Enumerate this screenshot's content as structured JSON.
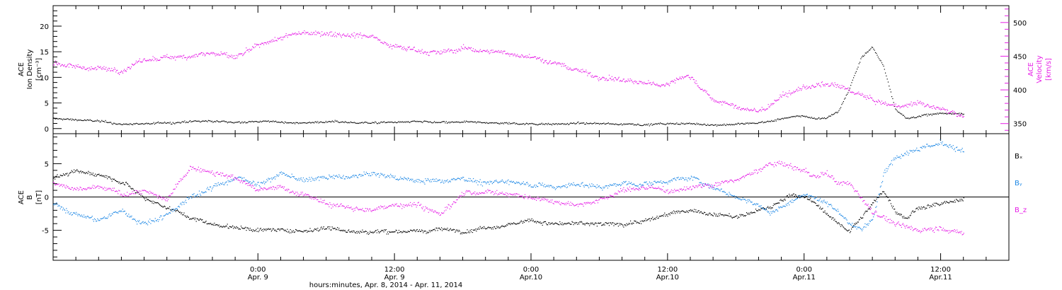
{
  "chart_data": [
    {
      "type": "scatter",
      "panel": "top",
      "x_range_hours": [
        -18,
        66
      ],
      "data_end_hour": 62,
      "left_axis": {
        "label_lines": [
          "ACE",
          "Ion Density",
          "[cm⁻³]"
        ],
        "ylim": [
          -1,
          24
        ],
        "ticks": [
          0,
          5,
          10,
          15,
          20
        ]
      },
      "right_axis": {
        "label_lines": [
          "ACE",
          "Velocity",
          "[km/s]"
        ],
        "ylim": [
          335,
          525
        ],
        "ticks": [
          350,
          400,
          450,
          500
        ]
      },
      "colors": {
        "density": "#000000",
        "velocity": "#e61ee6"
      },
      "series": [
        {
          "name": "density",
          "axis": "left",
          "color": "#000000",
          "x": [
            -18,
            -16,
            -14,
            -12,
            -10,
            -8,
            -6,
            -4,
            -2,
            0,
            2,
            4,
            6,
            8,
            10,
            12,
            14,
            16,
            18,
            20,
            22,
            24,
            26,
            28,
            30,
            32,
            34,
            36,
            38,
            40,
            42,
            44,
            45,
            46,
            47,
            48,
            49,
            50,
            51,
            52,
            53,
            54,
            55,
            56,
            57,
            58,
            60,
            62
          ],
          "y": [
            2.0,
            1.8,
            1.5,
            0.9,
            1.0,
            1.2,
            1.4,
            1.5,
            1.3,
            1.5,
            1.3,
            1.2,
            1.4,
            1.3,
            1.2,
            1.3,
            1.4,
            1.2,
            1.3,
            1.2,
            1.1,
            1.0,
            1.0,
            1.1,
            1.0,
            1.0,
            0.9,
            1.0,
            1.0,
            0.8,
            0.9,
            1.2,
            1.5,
            2.0,
            2.3,
            2.5,
            2.0,
            2.2,
            3.5,
            8.0,
            14.0,
            16.0,
            12.0,
            4.0,
            2.0,
            2.5,
            3.0,
            3.0
          ]
        },
        {
          "name": "velocity",
          "axis": "right",
          "color": "#e61ee6",
          "x": [
            -18,
            -16,
            -14,
            -12,
            -10,
            -8,
            -6,
            -4,
            -2,
            0,
            2,
            4,
            6,
            8,
            10,
            12,
            14,
            16,
            18,
            20,
            22,
            24,
            26,
            28,
            30,
            32,
            34,
            36,
            37,
            38,
            40,
            42,
            44,
            45,
            46,
            48,
            50,
            52,
            54,
            56,
            58,
            60,
            62
          ],
          "y": [
            440,
            435,
            432,
            430,
            445,
            448,
            452,
            455,
            448,
            465,
            478,
            485,
            485,
            483,
            480,
            465,
            460,
            455,
            462,
            458,
            455,
            450,
            440,
            430,
            420,
            415,
            410,
            408,
            420,
            420,
            385,
            375,
            368,
            378,
            390,
            405,
            408,
            400,
            385,
            375,
            382,
            372,
            362
          ]
        }
      ]
    },
    {
      "type": "scatter",
      "panel": "bottom",
      "x_range_hours": [
        -18,
        66
      ],
      "data_end_hour": 62,
      "axis": {
        "label_lines": [
          "ACE",
          "B",
          "[nT]"
        ],
        "ylim": [
          -9.5,
          9.5
        ],
        "ticks": [
          -5,
          0,
          5
        ]
      },
      "zero_line": true,
      "legend": [
        {
          "label": "Bₓ",
          "color": "#000000"
        },
        {
          "label": "Bᵧ",
          "color": "#1e88e5"
        },
        {
          "label": "B_z",
          "color": "#e61ee6"
        }
      ],
      "series": [
        {
          "name": "Bx",
          "color": "#000000",
          "x": [
            -18,
            -16,
            -14,
            -12,
            -10,
            -8,
            -6,
            -4,
            -2,
            0,
            2,
            4,
            6,
            8,
            10,
            12,
            14,
            16,
            18,
            20,
            22,
            24,
            26,
            28,
            30,
            32,
            34,
            36,
            38,
            40,
            42,
            44,
            45,
            46,
            47,
            48,
            49,
            50,
            51,
            52,
            53,
            54,
            55,
            56,
            57,
            58,
            60,
            62
          ],
          "y": [
            3.0,
            3.8,
            3.5,
            2.5,
            0.0,
            -1.5,
            -3.0,
            -4.0,
            -4.5,
            -4.8,
            -5.0,
            -5.0,
            -4.5,
            -5.0,
            -5.2,
            -5.0,
            -5.2,
            -4.8,
            -5.0,
            -4.5,
            -4.0,
            -3.5,
            -4.0,
            -4.0,
            -4.0,
            -4.0,
            -3.5,
            -2.5,
            -2.0,
            -2.5,
            -3.0,
            -2.0,
            -1.5,
            -0.5,
            0.5,
            0.0,
            -1.0,
            -2.5,
            -4.0,
            -5.0,
            -3.0,
            -1.0,
            1.0,
            -2.0,
            -3.0,
            -1.5,
            -1.0,
            -0.5
          ]
        },
        {
          "name": "By",
          "color": "#1e88e5",
          "x": [
            -18,
            -16,
            -14,
            -12,
            -10,
            -8,
            -6,
            -4,
            -2,
            0,
            2,
            4,
            6,
            8,
            10,
            12,
            14,
            16,
            18,
            20,
            22,
            24,
            26,
            28,
            30,
            32,
            34,
            36,
            38,
            40,
            42,
            44,
            45,
            46,
            47,
            48,
            49,
            50,
            51,
            52,
            53,
            54,
            55,
            56,
            57,
            58,
            60,
            62
          ],
          "y": [
            -1.0,
            -2.5,
            -3.5,
            -2.0,
            -4.0,
            -2.5,
            0.0,
            1.5,
            3.0,
            2.0,
            3.5,
            2.5,
            3.0,
            3.0,
            3.5,
            3.0,
            2.5,
            2.5,
            3.0,
            2.0,
            2.5,
            2.0,
            1.5,
            2.0,
            1.5,
            2.0,
            2.0,
            2.5,
            3.0,
            1.5,
            0.0,
            -1.0,
            -2.5,
            -1.5,
            -0.5,
            0.5,
            0.0,
            -1.0,
            -2.0,
            -4.0,
            -5.0,
            -3.0,
            4.0,
            6.0,
            7.0,
            7.5,
            8.0,
            7.0
          ]
        },
        {
          "name": "Bz",
          "color": "#e61ee6",
          "x": [
            -18,
            -16,
            -14,
            -12,
            -10,
            -8,
            -6,
            -4,
            -2,
            0,
            2,
            4,
            6,
            8,
            10,
            12,
            14,
            16,
            18,
            20,
            22,
            24,
            26,
            28,
            30,
            32,
            34,
            36,
            38,
            40,
            42,
            44,
            45,
            46,
            47,
            48,
            49,
            50,
            51,
            52,
            53,
            54,
            55,
            56,
            57,
            58,
            60,
            62
          ],
          "y": [
            2.0,
            1.0,
            1.5,
            0.5,
            1.0,
            -0.5,
            4.5,
            4.0,
            3.0,
            1.0,
            1.5,
            0.5,
            -1.0,
            -1.5,
            -2.0,
            -1.0,
            -1.0,
            -2.5,
            0.5,
            1.0,
            0.5,
            0.0,
            -0.5,
            -1.0,
            -0.5,
            1.0,
            1.5,
            1.0,
            1.5,
            2.0,
            2.5,
            4.0,
            5.0,
            5.0,
            4.5,
            4.0,
            3.0,
            3.5,
            2.0,
            2.0,
            0.0,
            -2.0,
            -3.0,
            -4.0,
            -4.5,
            -5.0,
            -4.5,
            -5.5
          ]
        }
      ]
    }
  ],
  "x_axis": {
    "major_ticks": [
      {
        "hour": 0,
        "time": "0:00",
        "date": "Apr. 9"
      },
      {
        "hour": 12,
        "time": "12:00",
        "date": "Apr. 9"
      },
      {
        "hour": 24,
        "time": "0:00",
        "date": "Apr.10"
      },
      {
        "hour": 36,
        "time": "12:00",
        "date": "Apr.10"
      },
      {
        "hour": 48,
        "time": "0:00",
        "date": "Apr.11"
      },
      {
        "hour": 60,
        "time": "12:00",
        "date": "Apr.11"
      }
    ],
    "title": "hours:minutes, Apr.  8, 2014 - Apr. 11, 2014"
  }
}
